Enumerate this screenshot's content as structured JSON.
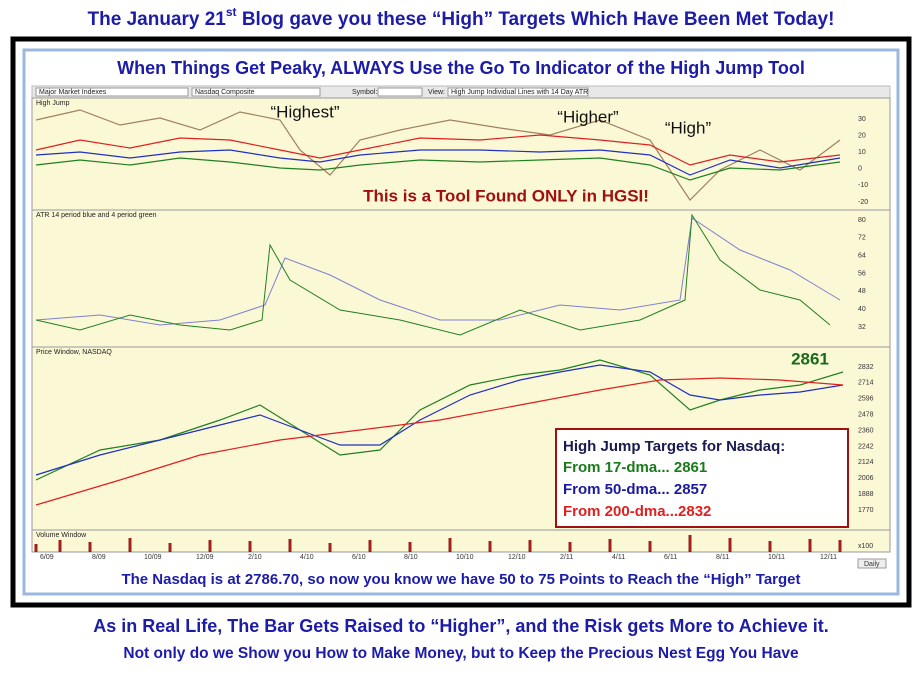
{
  "header": {
    "title_start": "The January 21",
    "title_sup": "st",
    "title_end": " Blog gave you these “High” Targets Which Have Been Met Today!"
  },
  "panel": {
    "title": "When Things Get Peaky, ALWAYS Use the Go To Indicator of the High Jump Tool",
    "toolbar": {
      "group": "Major Market Indexes",
      "index": "Nasdaq Composite",
      "symbol": "Symbol:",
      "view": "View:",
      "view_value": "High Jump Individual Lines with 14 Day ATR"
    },
    "high_jump": {
      "label": "High Jump",
      "ticks": [
        "30",
        "20",
        "10",
        "0",
        "-10",
        "-20"
      ],
      "annotations": [
        "“Highest”",
        "“Higher”",
        "“High”"
      ],
      "callout": "This is a Tool Found ONLY in HGSI!"
    },
    "atr": {
      "label": "ATR 14 period blue and 4 period green",
      "ticks": [
        "80",
        "72",
        "64",
        "56",
        "48",
        "40",
        "32"
      ]
    },
    "price": {
      "label": "Price Window, NASDAQ",
      "ticks": [
        "2832",
        "2714",
        "2596",
        "2478",
        "2360",
        "2242",
        "2124",
        "2006",
        "1888",
        "1770"
      ],
      "last": "2861",
      "targets": {
        "title": "High Jump Targets for Nasdaq:",
        "lines": [
          "From 17-dma... 2861",
          "From 50-dma... 2857",
          "From 200-dma...2832"
        ]
      }
    },
    "volume": {
      "label": "Volume Window",
      "scale": "x100",
      "button": "Daily"
    },
    "dates": [
      "6/09",
      "8/09",
      "10/09",
      "12/09",
      "2/10",
      "4/10",
      "6/10",
      "8/10",
      "10/10",
      "12/10",
      "2/11",
      "4/11",
      "6/11",
      "8/11",
      "10/11",
      "12/11"
    ],
    "caption": "The Nasdaq is at 2786.70, so now you know we have 50 to 75 Points to Reach the “High” Target"
  },
  "footer": {
    "line1": "As in Real Life, The Bar Gets Raised to “Higher”, and the Risk gets More to Achieve it.",
    "line2": "Not only do we Show you How to Make Money, but to Keep the Precious Nest Egg You Have"
  }
}
